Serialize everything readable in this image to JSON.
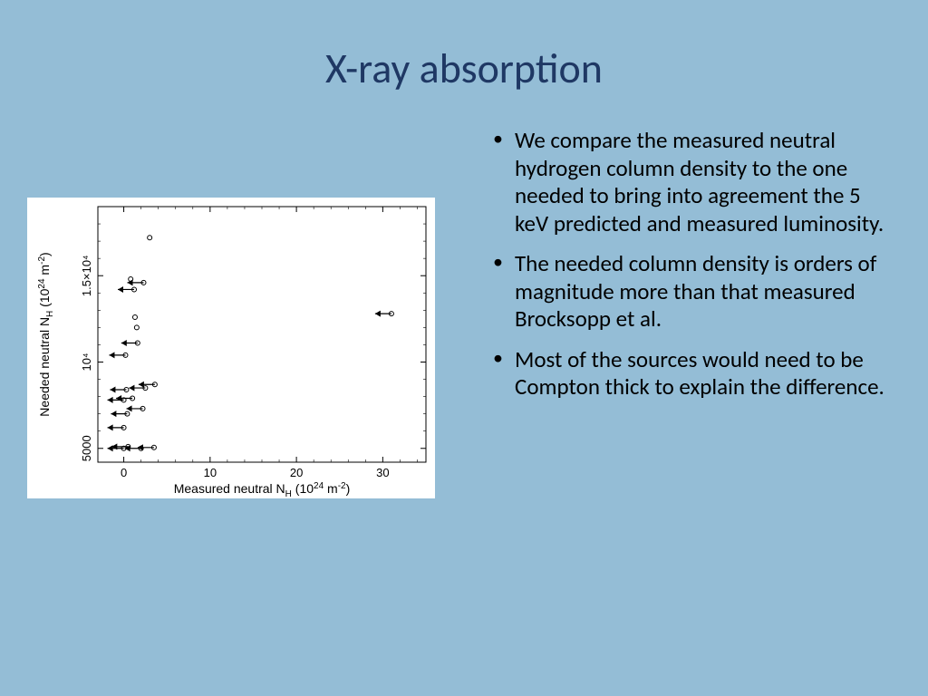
{
  "title": "X-ray absorption",
  "bullets": [
    "We compare the measured neutral hydrogen column density to the one needed to bring into agreement the 5 keV predicted and measured luminosity.",
    "The needed column density is orders of magnitude more than that measured Brocksopp et al.",
    "Most of the sources would need to be Compton thick to explain the difference."
  ],
  "chart": {
    "type": "scatter-with-arrows",
    "background_color": "#ffffff",
    "xlabel_prefix": "Measured neutral N",
    "xlabel_sub": "H",
    "xlabel_units_num": "24",
    "xlabel_units_rest": " m",
    "xlabel_units_sup": "-2",
    "ylabel_prefix": "Needed neutral N",
    "ylabel_sub": "H",
    "ylabel_units_num": "24",
    "ylabel_units_rest": " m",
    "ylabel_units_sup": "-2",
    "axis_fontsize": 14,
    "tick_fontsize": 13,
    "xlim": [
      -3,
      35
    ],
    "ylim_log_approx": [
      4200,
      19000
    ],
    "xticks": [
      0,
      10,
      20,
      30
    ],
    "yticks": [
      {
        "v": 5000,
        "label": "5000"
      },
      {
        "v": 10000,
        "label": "10⁴"
      },
      {
        "v": 15000,
        "label": "1.5×10⁴"
      }
    ],
    "line_color": "#000000",
    "marker_stroke": "#000000",
    "marker_style": "open-circle",
    "marker_radius": 2.5,
    "arrow_len": 18,
    "arrow_stroke_width": 1.2,
    "points": [
      {
        "x": 0.0,
        "y": 5000,
        "arrow": true
      },
      {
        "x": 0.5,
        "y": 5100,
        "arrow": true
      },
      {
        "x": 2.0,
        "y": 5000,
        "arrow": true
      },
      {
        "x": 3.5,
        "y": 5050,
        "arrow": true
      },
      {
        "x": 0.0,
        "y": 6200,
        "arrow": true
      },
      {
        "x": 0.4,
        "y": 7000,
        "arrow": true
      },
      {
        "x": 2.2,
        "y": 7300,
        "arrow": true
      },
      {
        "x": 0.0,
        "y": 7800,
        "arrow": true
      },
      {
        "x": 1.0,
        "y": 7900,
        "arrow": true
      },
      {
        "x": 0.3,
        "y": 8400,
        "arrow": true
      },
      {
        "x": 2.5,
        "y": 8500,
        "arrow": true
      },
      {
        "x": 3.6,
        "y": 8700,
        "arrow": true
      },
      {
        "x": 0.2,
        "y": 10400,
        "arrow": true
      },
      {
        "x": 1.6,
        "y": 11100,
        "arrow": true
      },
      {
        "x": 1.5,
        "y": 12000,
        "arrow": false
      },
      {
        "x": 1.3,
        "y": 12600,
        "arrow": false
      },
      {
        "x": 31.0,
        "y": 12800,
        "arrow": true
      },
      {
        "x": 1.2,
        "y": 14200,
        "arrow": true
      },
      {
        "x": 2.3,
        "y": 14600,
        "arrow": true
      },
      {
        "x": 0.8,
        "y": 14800,
        "arrow": false
      },
      {
        "x": 3.0,
        "y": 17200,
        "arrow": false
      }
    ]
  }
}
